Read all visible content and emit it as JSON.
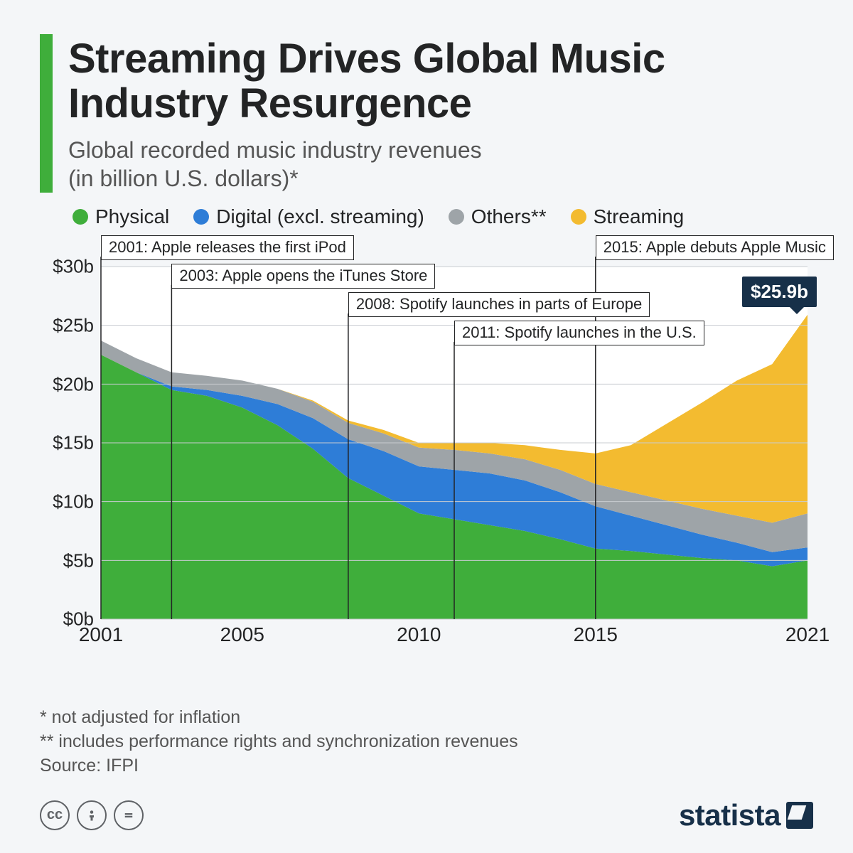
{
  "header": {
    "accent_color": "#3fae3b",
    "title": "Streaming Drives Global Music Industry Resurgence",
    "subtitle": "Global recorded music industry revenues\n(in billion U.S. dollars)*"
  },
  "legend": [
    {
      "label": "Physical",
      "color": "#3fae3b"
    },
    {
      "label": "Digital (excl. streaming)",
      "color": "#2e7dd7"
    },
    {
      "label": "Others**",
      "color": "#9ea4a8"
    },
    {
      "label": "Streaming",
      "color": "#f3bb30"
    }
  ],
  "chart": {
    "type": "stacked-area",
    "background_color": "#ffffff",
    "grid_color": "#c8ccd0",
    "x_range": [
      2001,
      2021
    ],
    "x_ticks": [
      2001,
      2005,
      2010,
      2015,
      2021
    ],
    "y_range": [
      0,
      30
    ],
    "y_ticks": [
      0,
      5,
      10,
      15,
      20,
      25,
      30
    ],
    "y_tick_labels": [
      "$0b",
      "$5b",
      "$10b",
      "$15b",
      "$20b",
      "$25b",
      "$30b"
    ],
    "years": [
      2001,
      2002,
      2003,
      2004,
      2005,
      2006,
      2007,
      2008,
      2009,
      2010,
      2011,
      2012,
      2013,
      2014,
      2015,
      2016,
      2017,
      2018,
      2019,
      2020,
      2021
    ],
    "series": {
      "physical": [
        22.5,
        21.0,
        19.5,
        19.0,
        18.0,
        16.5,
        14.5,
        12.0,
        10.5,
        9.0,
        8.5,
        8.0,
        7.5,
        6.8,
        6.0,
        5.8,
        5.5,
        5.2,
        5.0,
        4.5,
        5.0
      ],
      "digital": [
        0.0,
        0.0,
        0.3,
        0.5,
        1.0,
        1.8,
        2.6,
        3.3,
        3.8,
        4.0,
        4.2,
        4.4,
        4.3,
        4.0,
        3.6,
        3.0,
        2.5,
        2.0,
        1.5,
        1.2,
        1.1
      ],
      "others": [
        1.2,
        1.2,
        1.2,
        1.2,
        1.3,
        1.3,
        1.4,
        1.4,
        1.5,
        1.6,
        1.7,
        1.7,
        1.8,
        1.9,
        1.9,
        2.0,
        2.1,
        2.2,
        2.3,
        2.5,
        2.9
      ],
      "streaming": [
        0.0,
        0.0,
        0.0,
        0.0,
        0.0,
        0.0,
        0.1,
        0.2,
        0.3,
        0.4,
        0.6,
        0.9,
        1.2,
        1.7,
        2.6,
        4.0,
        6.5,
        9.0,
        11.5,
        13.5,
        16.9
      ]
    },
    "stack_order": [
      "physical",
      "digital",
      "others",
      "streaming"
    ],
    "colors": {
      "physical": "#3fae3b",
      "digital": "#2e7dd7",
      "others": "#9ea4a8",
      "streaming": "#f3bb30"
    },
    "annotations": [
      {
        "year": 2001,
        "text": "2001: Apple releases the first iPod",
        "offset_y": 0
      },
      {
        "year": 2003,
        "text": "2003: Apple opens the iTunes Store",
        "offset_y": 40
      },
      {
        "year": 2008,
        "text": "2008: Spotify launches in parts of Europe",
        "offset_y": 80
      },
      {
        "year": 2011,
        "text": "2011: Spotify launches in the U.S.",
        "offset_y": 120
      },
      {
        "year": 2015,
        "text": "2015: Apple debuts Apple Music",
        "offset_y": 0
      }
    ],
    "final_value": {
      "year": 2021,
      "label": "$25.9b",
      "value": 25.9
    }
  },
  "footnotes": [
    "*   not adjusted for inflation",
    "** includes performance rights and synchronization revenues",
    "Source: IFPI"
  ],
  "footer": {
    "brand": "statista"
  }
}
